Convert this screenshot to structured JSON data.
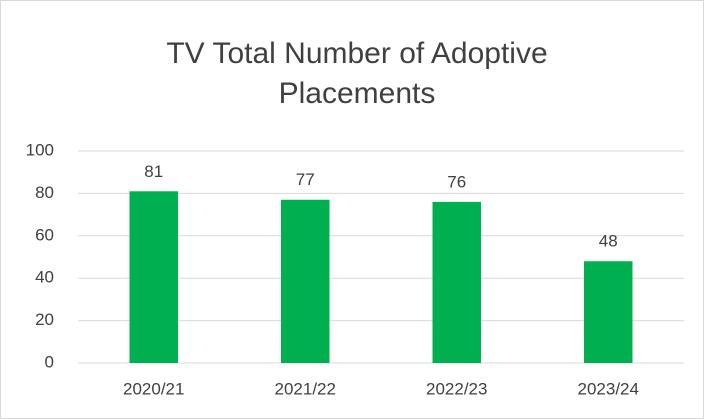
{
  "chart_data": {
    "type": "bar",
    "title": "TV Total Number of Adoptive Placements",
    "categories": [
      "2020/21",
      "2021/22",
      "2022/23",
      "2023/24"
    ],
    "values": [
      81,
      77,
      76,
      48
    ],
    "color": "#00b050",
    "ylim": [
      0,
      100
    ],
    "yticks": [
      0,
      20,
      40,
      60,
      80,
      100
    ],
    "grid": true
  }
}
